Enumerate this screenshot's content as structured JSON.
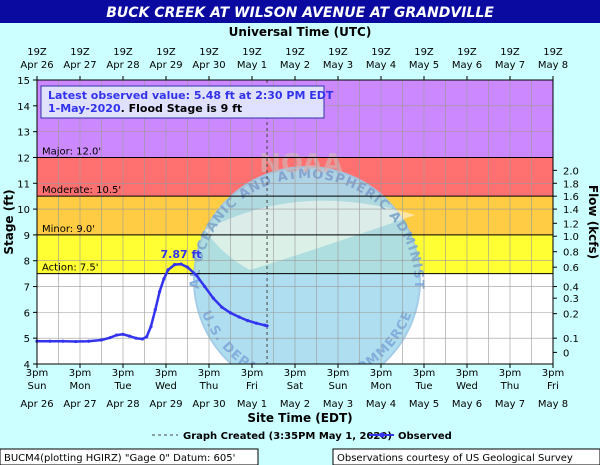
{
  "header": {
    "title": "BUCK CREEK AT WILSON AVENUE AT GRANDVILLE",
    "top_axis_title": "Universal Time (UTC)"
  },
  "chart_data": {
    "type": "line",
    "top_ticks": [
      {
        "hour": "19Z",
        "date": "Apr 26"
      },
      {
        "hour": "19Z",
        "date": "Apr 27"
      },
      {
        "hour": "19Z",
        "date": "Apr 28"
      },
      {
        "hour": "19Z",
        "date": "Apr 29"
      },
      {
        "hour": "19Z",
        "date": "Apr 30"
      },
      {
        "hour": "19Z",
        "date": "May 1"
      },
      {
        "hour": "19Z",
        "date": "May 2"
      },
      {
        "hour": "19Z",
        "date": "May 3"
      },
      {
        "hour": "19Z",
        "date": "May 4"
      },
      {
        "hour": "19Z",
        "date": "May 5"
      },
      {
        "hour": "19Z",
        "date": "May 6"
      },
      {
        "hour": "19Z",
        "date": "May 7"
      },
      {
        "hour": "19Z",
        "date": "May 8"
      }
    ],
    "bottom_ticks": [
      {
        "time": "3pm",
        "day": "Sun",
        "date": "Apr 26"
      },
      {
        "time": "3pm",
        "day": "Mon",
        "date": "Apr 27"
      },
      {
        "time": "3pm",
        "day": "Tue",
        "date": "Apr 28"
      },
      {
        "time": "3pm",
        "day": "Wed",
        "date": "Apr 29"
      },
      {
        "time": "3pm",
        "day": "Thu",
        "date": "Apr 30"
      },
      {
        "time": "3pm",
        "day": "Fri",
        "date": "May 1"
      },
      {
        "time": "3pm",
        "day": "Sat",
        "date": "May 2"
      },
      {
        "time": "3pm",
        "day": "Sun",
        "date": "May 3"
      },
      {
        "time": "3pm",
        "day": "Mon",
        "date": "May 4"
      },
      {
        "time": "3pm",
        "day": "Tue",
        "date": "May 5"
      },
      {
        "time": "3pm",
        "day": "Wed",
        "date": "May 6"
      },
      {
        "time": "3pm",
        "day": "Thu",
        "date": "May 7"
      },
      {
        "time": "3pm",
        "day": "Fri",
        "date": "May 8"
      }
    ],
    "xlim_days": [
      0,
      12
    ],
    "ylabel": "Stage (ft)",
    "ylim": [
      4,
      15
    ],
    "y_ticks": [
      4,
      5,
      6,
      7,
      8,
      9,
      10,
      11,
      12,
      13,
      14,
      15
    ],
    "y2label": "Flow (kcfs)",
    "y2_ticks": [
      {
        "stage": 4.45,
        "label": "0"
      },
      {
        "stage": 5.0,
        "label": "0.1"
      },
      {
        "stage": 5.95,
        "label": "0.2"
      },
      {
        "stage": 6.55,
        "label": "0.3"
      },
      {
        "stage": 7.0,
        "label": "0.4"
      },
      {
        "stage": 7.75,
        "label": "0.6"
      },
      {
        "stage": 8.35,
        "label": "0.8"
      },
      {
        "stage": 8.95,
        "label": "1.0"
      },
      {
        "stage": 9.45,
        "label": "1.2"
      },
      {
        "stage": 10.0,
        "label": "1.4"
      },
      {
        "stage": 10.5,
        "label": "1.6"
      },
      {
        "stage": 11.0,
        "label": "1.8"
      },
      {
        "stage": 11.5,
        "label": "2.0"
      }
    ],
    "xlabel": "Site Time (EDT)",
    "flood_categories": [
      {
        "label": "Action: 7.5'",
        "from": 7.5,
        "to": 9.0,
        "color": "#ffff33"
      },
      {
        "label": "Minor: 9.0'",
        "from": 9.0,
        "to": 10.5,
        "color": "#ffcc44"
      },
      {
        "label": "Moderate: 10.5'",
        "from": 10.5,
        "to": 12.0,
        "color": "#ff7070"
      },
      {
        "label": "Major: 12.0'",
        "from": 12.0,
        "to": 15.0,
        "color": "#cc88ff"
      }
    ],
    "grid": true,
    "series": [
      {
        "name": "Observed",
        "color": "#3333ee",
        "points": [
          {
            "x": 0.0,
            "y": 4.88
          },
          {
            "x": 0.3,
            "y": 4.88
          },
          {
            "x": 0.6,
            "y": 4.88
          },
          {
            "x": 0.9,
            "y": 4.87
          },
          {
            "x": 1.2,
            "y": 4.88
          },
          {
            "x": 1.5,
            "y": 4.93
          },
          {
            "x": 1.7,
            "y": 5.02
          },
          {
            "x": 1.85,
            "y": 5.12
          },
          {
            "x": 2.0,
            "y": 5.15
          },
          {
            "x": 2.15,
            "y": 5.08
          },
          {
            "x": 2.3,
            "y": 5.0
          },
          {
            "x": 2.45,
            "y": 4.97
          },
          {
            "x": 2.55,
            "y": 5.05
          },
          {
            "x": 2.65,
            "y": 5.45
          },
          {
            "x": 2.75,
            "y": 6.1
          },
          {
            "x": 2.85,
            "y": 6.8
          },
          {
            "x": 2.95,
            "y": 7.3
          },
          {
            "x": 3.05,
            "y": 7.65
          },
          {
            "x": 3.2,
            "y": 7.85
          },
          {
            "x": 3.35,
            "y": 7.87
          },
          {
            "x": 3.5,
            "y": 7.75
          },
          {
            "x": 3.7,
            "y": 7.45
          },
          {
            "x": 3.9,
            "y": 7.0
          },
          {
            "x": 4.1,
            "y": 6.55
          },
          {
            "x": 4.3,
            "y": 6.2
          },
          {
            "x": 4.5,
            "y": 5.98
          },
          {
            "x": 4.7,
            "y": 5.82
          },
          {
            "x": 4.9,
            "y": 5.68
          },
          {
            "x": 5.1,
            "y": 5.58
          },
          {
            "x": 5.3,
            "y": 5.5
          },
          {
            "x": 5.35,
            "y": 5.48
          }
        ]
      }
    ],
    "peak_label": {
      "x": 3.35,
      "y": 7.87,
      "text": "7.87 ft"
    },
    "graph_created_x": 5.35,
    "latest_box": {
      "line1": "Latest observed value: 5.48 ft at 2:30 PM EDT",
      "line2_date": "1-May-2020",
      "line2_rest": ". Flood Stage is 9 ft"
    },
    "legend": {
      "graph_created": "Graph Created (3:35PM May 1, 2020)",
      "observed": "Observed"
    },
    "watermark": {
      "name": "noaa-seal",
      "text_top": "NATIONAL OCEANIC AND ATMOSPHERIC ADMINISTRATION",
      "text_center": "NOAA",
      "text_bottom": "U.S. DEPARTMENT OF COMMERCE"
    }
  },
  "footer": {
    "station": "BUCM4(plotting HGIRZ) \"Gage 0\" Datum: 605'",
    "credit": "Observations courtesy of US Geological Survey"
  },
  "colors": {
    "title_bar": "#0a0aa0",
    "title_text": "#ffffff",
    "outer_bg": "#ccffff",
    "axis_text": "#000000",
    "series": "#3333ee"
  }
}
